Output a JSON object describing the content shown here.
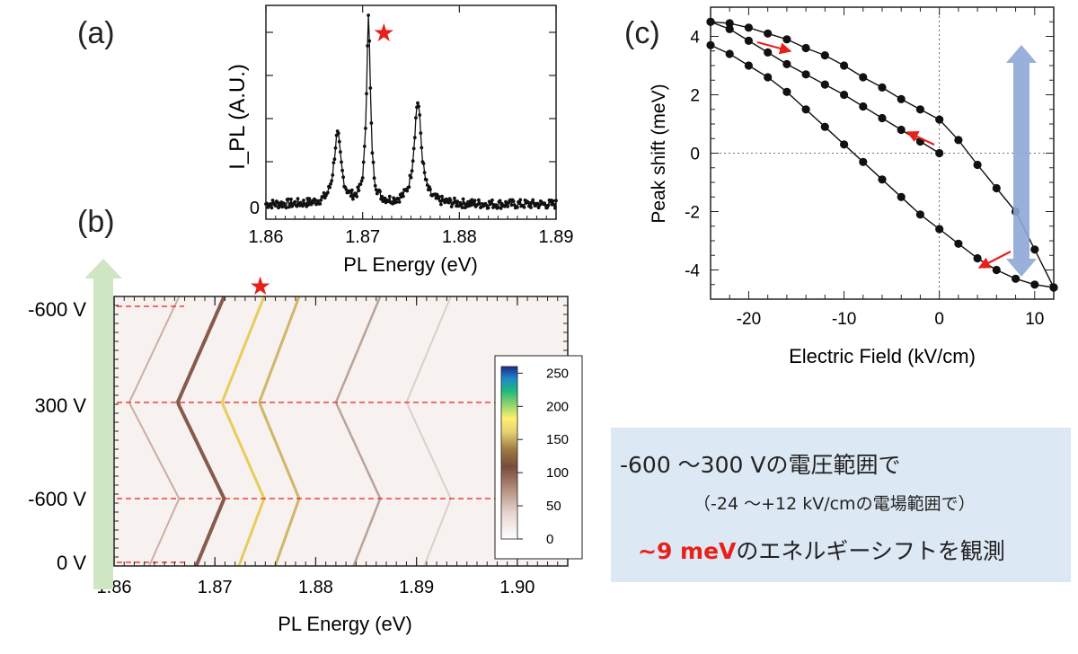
{
  "panels": {
    "a_label": "(a)",
    "b_label": "(b)",
    "c_label": "(c)"
  },
  "note": {
    "line1": "-600 〜300 Vの電圧範囲で",
    "line2": "（-24 〜+12 kV/cmの電場範囲で）",
    "line3_highlight": "~9 meV",
    "line3_rest": "のエネルギーシフトを観測"
  },
  "colors": {
    "marker_star": "#e8201a",
    "arrow_red": "#e8201a",
    "green_arrow": "#cfe6c2",
    "blue_arrow": "#8ea7d6",
    "note_bg": "#dce8f3"
  },
  "chart_data": [
    {
      "id": "a",
      "type": "line",
      "xlabel": "PL Energy (eV)",
      "ylabel": "I_PL (A.U.)",
      "xlim": [
        1.86,
        1.89
      ],
      "xticks": [
        "1.86",
        "1.87",
        "1.88",
        "1.89"
      ],
      "yticks": [
        "0"
      ],
      "peaks": [
        {
          "x": 1.8674,
          "height": 0.37
        },
        {
          "x": 1.8706,
          "height": 1.0
        },
        {
          "x": 1.8757,
          "height": 0.55
        }
      ],
      "annotations": [
        {
          "text": "★",
          "x": 1.8722
        }
      ]
    },
    {
      "id": "b",
      "type": "heatmap",
      "xlabel": "PL Energy (eV)",
      "xlim": [
        1.86,
        1.905
      ],
      "xticks": [
        "1.86",
        "1.87",
        "1.88",
        "1.89",
        "1.90"
      ],
      "y_labels": [
        "-600 V",
        "300 V",
        "-600 V",
        "0 V"
      ],
      "colorbar_ticks": [
        "0",
        "50",
        "100",
        "150",
        "200",
        "250"
      ],
      "colorbar_range": [
        0,
        260
      ],
      "annotations": [
        {
          "text": "★",
          "x": 1.8745
        }
      ]
    },
    {
      "id": "c",
      "type": "line",
      "xlabel": "Electric Field (kV/cm)",
      "ylabel": "Peak shift (meV)",
      "xlim": [
        -24,
        12
      ],
      "ylim": [
        -5,
        5
      ],
      "xticks": [
        "-20",
        "-10",
        "0",
        "10"
      ],
      "yticks": [
        "4",
        "2",
        "0",
        "-2",
        "-4"
      ],
      "series": [
        {
          "x": [
            -24,
            -22,
            -20,
            -18,
            -16,
            -14,
            -12,
            -10,
            -8,
            -6,
            -4,
            -2,
            0,
            2,
            4,
            6,
            8,
            10,
            12
          ],
          "y": [
            4.5,
            4.45,
            4.3,
            4.1,
            3.9,
            3.6,
            3.35,
            3.0,
            2.6,
            2.25,
            1.85,
            1.5,
            1.15,
            0.45,
            -0.4,
            -1.2,
            -2.0,
            -3.3,
            -4.6
          ]
        },
        {
          "x": [
            12,
            10,
            8,
            6,
            4,
            2,
            0,
            -2,
            -4,
            -6,
            -8,
            -10,
            -12,
            -14,
            -16,
            -18,
            -20,
            -22,
            -24
          ],
          "y": [
            -4.6,
            -4.5,
            -4.3,
            -4.0,
            -3.6,
            -3.1,
            -2.6,
            -2.1,
            -1.5,
            -0.9,
            -0.3,
            0.3,
            0.9,
            1.5,
            2.1,
            2.6,
            3.0,
            3.4,
            3.7
          ]
        },
        {
          "x": [
            -24,
            -22,
            -20,
            -18,
            -16,
            -14,
            -12,
            -10,
            -8,
            -6,
            -4,
            -2,
            0
          ],
          "y": [
            4.5,
            4.25,
            3.85,
            3.45,
            3.05,
            2.7,
            2.35,
            2.0,
            1.6,
            1.2,
            0.8,
            0.4,
            0.0
          ]
        }
      ]
    }
  ]
}
